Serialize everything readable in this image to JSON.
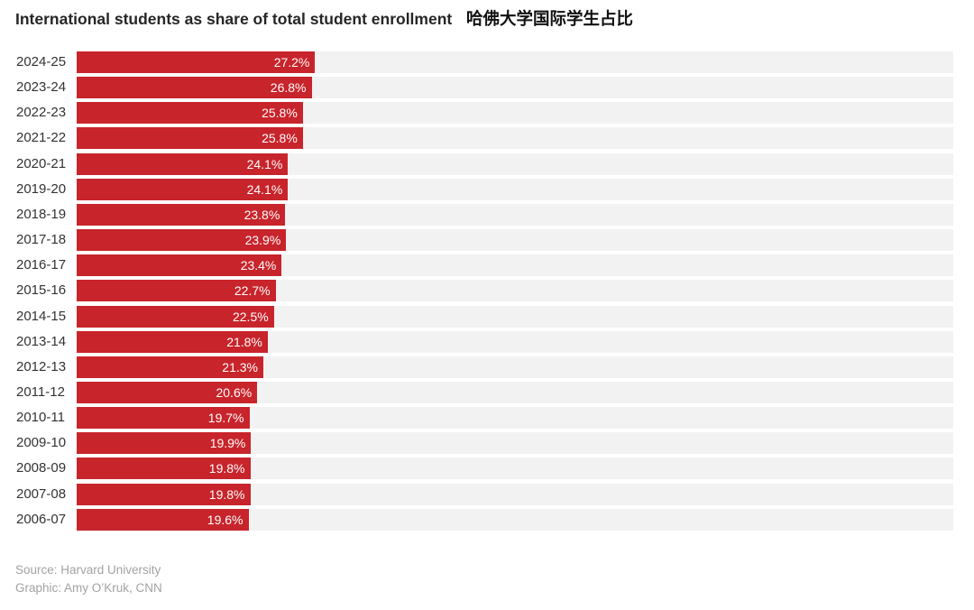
{
  "chart_data": {
    "type": "bar",
    "orientation": "horizontal",
    "title": "International students as share of total student enrollment",
    "title_translation": "哈佛大学国际学生占比",
    "categories": [
      "2024-25",
      "2023-24",
      "2022-23",
      "2021-22",
      "2020-21",
      "2019-20",
      "2018-19",
      "2017-18",
      "2016-17",
      "2015-16",
      "2014-15",
      "2013-14",
      "2012-13",
      "2011-12",
      "2010-11",
      "2009-10",
      "2008-09",
      "2007-08",
      "2006-07"
    ],
    "values": [
      27.2,
      26.8,
      25.8,
      25.8,
      24.1,
      24.1,
      23.8,
      23.9,
      23.4,
      22.7,
      22.5,
      21.8,
      21.3,
      20.6,
      19.7,
      19.9,
      19.8,
      19.8,
      19.6
    ],
    "value_labels": [
      "27.2%",
      "26.8%",
      "25.8%",
      "25.8%",
      "24.1%",
      "24.1%",
      "23.8%",
      "23.9%",
      "23.4%",
      "22.7%",
      "22.5%",
      "21.8%",
      "21.3%",
      "20.6%",
      "19.7%",
      "19.9%",
      "19.8%",
      "19.8%",
      "19.6%"
    ],
    "xlim": [
      0,
      100
    ],
    "grid": false
  },
  "footer": {
    "source": "Source: Harvard University",
    "credit": "Graphic: Amy O’Kruk, CNN"
  },
  "colors": {
    "bar": "#c8242b",
    "track": "#f2f2f2"
  }
}
